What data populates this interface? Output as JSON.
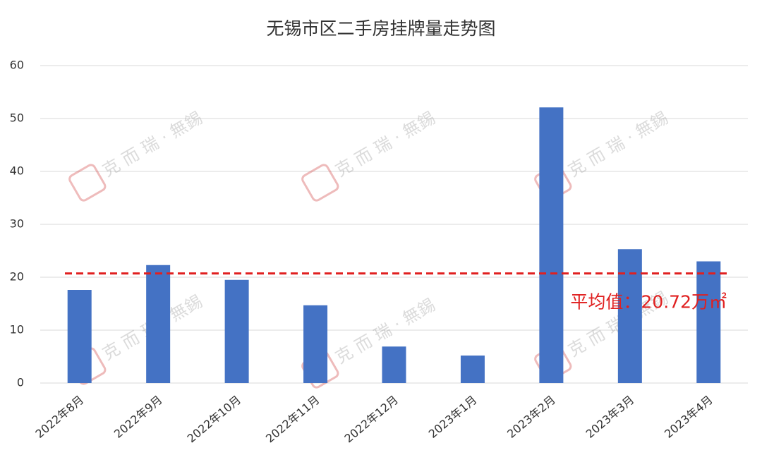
{
  "chart_data": {
    "type": "bar",
    "title": "无锡市区二手房挂牌量走势图",
    "categories": [
      "2022年8月",
      "2022年9月",
      "2022年10月",
      "2022年11月",
      "2022年12月",
      "2023年1月",
      "2023年2月",
      "2023年3月",
      "2023年4月"
    ],
    "values": [
      17.6,
      22.3,
      19.5,
      14.7,
      6.9,
      5.2,
      52.1,
      25.3,
      23.0
    ],
    "color": "#4472c4",
    "ylim": [
      0,
      60
    ],
    "yticks": [
      0,
      10,
      20,
      30,
      40,
      50,
      60
    ],
    "grid": true,
    "average_line": {
      "value": 20.72,
      "label": "平均值：20.72万㎡",
      "color": "#e02020"
    },
    "watermark": "克 而 瑞 · 無錫"
  }
}
